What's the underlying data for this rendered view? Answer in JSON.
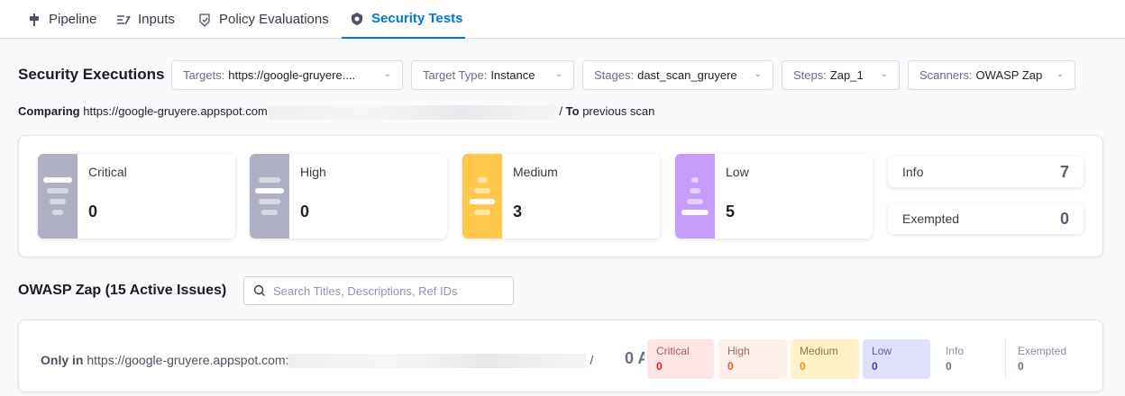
{
  "tabs": [
    {
      "label": "Pipeline",
      "icon": "pipeline-icon"
    },
    {
      "label": "Inputs",
      "icon": "inputs-icon"
    },
    {
      "label": "Policy Evaluations",
      "icon": "shield-check-icon"
    },
    {
      "label": "Security Tests",
      "icon": "security-shield-icon",
      "active": true
    }
  ],
  "executions": {
    "title": "Security Executions",
    "filters": [
      {
        "label": "Targets:",
        "value": "https://google-gruyere...."
      },
      {
        "label": "Target Type:",
        "value": "Instance"
      },
      {
        "label": "Stages:",
        "value": "dast_scan_gruyere"
      },
      {
        "label": "Steps:",
        "value": "Zap_1"
      },
      {
        "label": "Scanners:",
        "value": "OWASP Zap"
      }
    ],
    "comparing_label": "Comparing",
    "comparing_target": "https://google-gruyere.appspot.com",
    "comparing_sep": "/",
    "to_label": "To",
    "to_value": "previous scan"
  },
  "summary": {
    "cards": [
      {
        "label": "Critical",
        "value": "0",
        "color": "#afb0c3"
      },
      {
        "label": "High",
        "value": "0",
        "color": "#afb0c3"
      },
      {
        "label": "Medium",
        "value": "3",
        "color": "#ffc84a"
      },
      {
        "label": "Low",
        "value": "5",
        "color": "#c69cfa"
      }
    ],
    "info": {
      "label": "Info",
      "value": "7"
    },
    "exempted": {
      "label": "Exempted",
      "value": "0"
    }
  },
  "issues": {
    "title": "OWASP Zap (15 Active Issues)",
    "search_placeholder": "Search Titles, Descriptions, Ref IDs"
  },
  "only_in": {
    "prefix": "Only in",
    "target": "https://google-gruyere.appspot.com:",
    "sep": "/",
    "count": "0 A",
    "pills": [
      {
        "label": "Critical",
        "value": "0",
        "bg": "#fde5e5",
        "fg": "#cf2318",
        "lab": "#a06060"
      },
      {
        "label": "High",
        "value": "0",
        "bg": "#fdf0ea",
        "fg": "#ff5310",
        "lab": "#9a6a5a"
      },
      {
        "label": "Medium",
        "value": "0",
        "bg": "#fff2c8",
        "fg": "#ff8800",
        "lab": "#8c7a4a"
      },
      {
        "label": "Low",
        "value": "0",
        "bg": "#dfe0fb",
        "fg": "#5b2bd0",
        "lab": "#5e6090"
      }
    ],
    "info": {
      "label": "Info",
      "value": "0"
    },
    "exempted": {
      "label": "Exempted",
      "value": "0"
    }
  }
}
